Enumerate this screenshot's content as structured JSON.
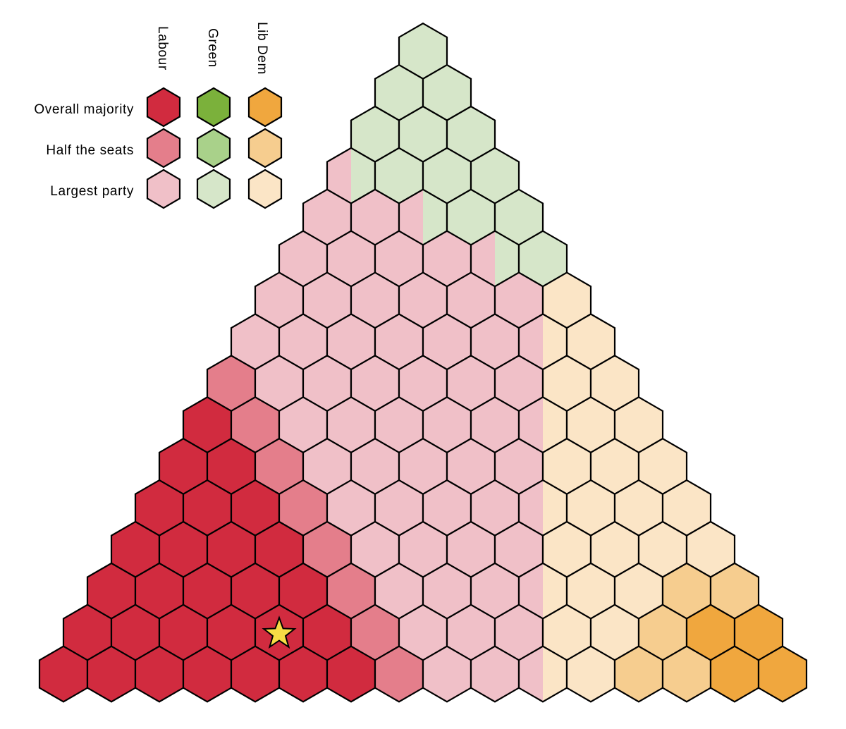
{
  "colors": {
    "labour": {
      "majority": "#d12b3f",
      "half": "#e47e8b",
      "largest": "#f0c0c8"
    },
    "green": {
      "majority": "#7bb13b",
      "half": "#a9d18a",
      "largest": "#d6e6c9"
    },
    "libdem": {
      "majority": "#f0a73e",
      "half": "#f6cd8f",
      "largest": "#fbe5c6"
    },
    "star": "#f7dc45"
  },
  "legend": {
    "columns": [
      {
        "key": "labour",
        "label": "Labour"
      },
      {
        "key": "green",
        "label": "Green"
      },
      {
        "key": "libdem",
        "label": "Lib Dem"
      }
    ],
    "rows": [
      {
        "key": "majority",
        "label": "Overall majority"
      },
      {
        "key": "half",
        "label": "Half the seats"
      },
      {
        "key": "largest",
        "label": "Largest party"
      }
    ]
  },
  "grid": {
    "rows": [
      [
        "gl"
      ],
      [
        "gl",
        "gl"
      ],
      [
        "gl",
        "gl",
        "gl"
      ],
      [
        "pl|gl",
        "gl",
        "gl",
        "gl"
      ],
      [
        "pl",
        "pl",
        "pl|gl",
        "gl",
        "gl"
      ],
      [
        "pl",
        "pl",
        "pl",
        "pl",
        "pl|gl",
        "gl"
      ],
      [
        "pl",
        "pl",
        "pl",
        "pl",
        "pl",
        "pl",
        "ol"
      ],
      [
        "pl",
        "pl",
        "pl",
        "pl",
        "pl",
        "pl",
        "pl|ol",
        "ol"
      ],
      [
        "ph",
        "pl",
        "pl",
        "pl",
        "pl",
        "pl",
        "pl",
        "ol",
        "ol"
      ],
      [
        "pm",
        "ph",
        "pl",
        "pl",
        "pl",
        "pl",
        "pl",
        "pl|ol",
        "ol",
        "ol"
      ],
      [
        "pm",
        "pm",
        "ph",
        "pl",
        "pl",
        "pl",
        "pl",
        "pl",
        "ol",
        "ol",
        "ol"
      ],
      [
        "pm",
        "pm",
        "pm",
        "ph",
        "pl",
        "pl",
        "pl",
        "pl",
        "pl|ol",
        "ol",
        "ol",
        "ol"
      ],
      [
        "pm",
        "pm",
        "pm",
        "pm",
        "ph",
        "pl",
        "pl",
        "pl",
        "pl",
        "ol",
        "ol",
        "ol",
        "ol"
      ],
      [
        "pm",
        "pm",
        "pm",
        "pm",
        "pm",
        "ph",
        "pl",
        "pl",
        "pl",
        "pl|ol",
        "ol",
        "ol",
        "oh",
        "oh"
      ],
      [
        "pm",
        "pm",
        "pm",
        "pm",
        "pm",
        "pm",
        "ph",
        "pl",
        "pl",
        "pl",
        "ol",
        "ol",
        "oh",
        "om",
        "om"
      ],
      [
        "pm",
        "pm",
        "pm",
        "pm",
        "pm",
        "pm",
        "pm",
        "ph",
        "pl",
        "pl",
        "pl|ol",
        "ol",
        "oh",
        "oh",
        "om",
        "om"
      ]
    ],
    "star": {
      "row": 14,
      "col": 4
    }
  }
}
